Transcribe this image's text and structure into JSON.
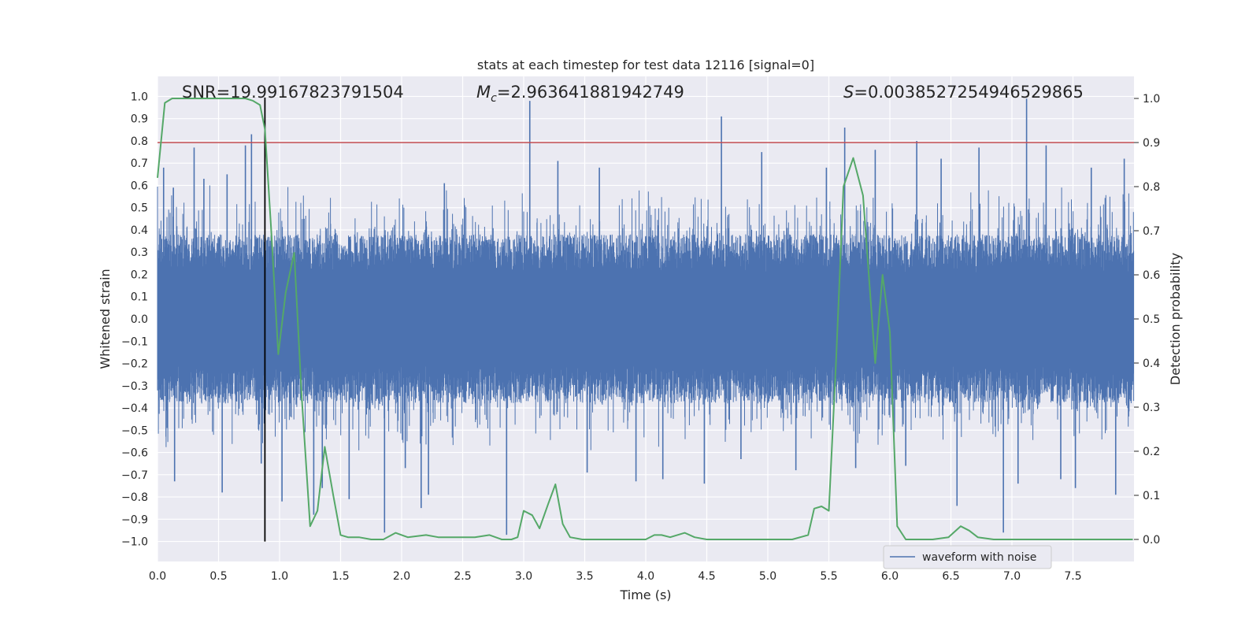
{
  "chart_data": {
    "type": "line",
    "title": "stats at each timestep for test data 12116 [signal=0]",
    "xlabel": "Time (s)",
    "ylabel": "Whitened strain",
    "y2label": "Detection probability",
    "xlim": [
      0.0,
      8.0
    ],
    "ylim": [
      -1.09,
      1.09
    ],
    "y2lim": [
      -0.05,
      1.05
    ],
    "xticks": [
      0.0,
      0.5,
      1.0,
      1.5,
      2.0,
      2.5,
      3.0,
      3.5,
      4.0,
      4.5,
      5.0,
      5.5,
      6.0,
      6.5,
      7.0,
      7.5
    ],
    "xtick_labels": [
      "0.0",
      "0.5",
      "1.0",
      "1.5",
      "2.0",
      "2.5",
      "3.0",
      "3.5",
      "4.0",
      "4.5",
      "5.0",
      "5.5",
      "6.0",
      "6.5",
      "7.0",
      "7.5"
    ],
    "yticks": [
      1.0,
      0.9,
      0.8,
      0.7,
      0.6,
      0.5,
      0.4,
      0.3,
      0.2,
      0.1,
      0.0,
      -0.1,
      -0.2,
      -0.3,
      -0.4,
      -0.5,
      -0.6,
      -0.7,
      -0.8,
      -0.9,
      -1.0
    ],
    "ytick_labels": [
      "1.0",
      "0.9",
      "0.8",
      "0.7",
      "0.6",
      "0.5",
      "0.4",
      "0.3",
      "0.2",
      "0.1",
      "0.0",
      "−0.1",
      "−0.2",
      "−0.3",
      "−0.4",
      "−0.5",
      "−0.6",
      "−0.7",
      "−0.8",
      "−0.9",
      "−1.0"
    ],
    "y2ticks": [
      1.0,
      0.9,
      0.8,
      0.7,
      0.6,
      0.5,
      0.4,
      0.3,
      0.2,
      0.1,
      0.0
    ],
    "y2tick_labels": [
      "1.0",
      "0.9",
      "0.8",
      "0.7",
      "0.6",
      "0.5",
      "0.4",
      "0.3",
      "0.2",
      "0.1",
      "0.0"
    ],
    "grid": true,
    "legend_position": "lower-right",
    "annotations": [
      {
        "prefix": "SNR=",
        "value": "19.99167823791504",
        "x": 0.2,
        "y": 1.0
      },
      {
        "prefix": "M",
        "subscript": "c",
        "suffix": "=",
        "value": "2.963641881942749",
        "x": 2.6,
        "y": 1.0
      },
      {
        "prefix": "S",
        "suffix": "=",
        "value": "0.0038527254946529865",
        "x": 5.6,
        "y": 1.0
      }
    ],
    "threshold": {
      "axis": "y2",
      "value": 0.9,
      "color": "#c44e52"
    },
    "vline": {
      "x": 0.88,
      "ymin": -1.0,
      "ymax": 0.995,
      "color": "#000000"
    },
    "series": [
      {
        "name": "waveform with noise",
        "axis": "y",
        "kind": "noise",
        "color": "#4c72b0",
        "typical_amplitude": 0.38,
        "peaks": [
          {
            "x": 0.05,
            "y": 0.68
          },
          {
            "x": 0.08,
            "y": -0.49
          },
          {
            "x": 0.13,
            "y": 0.59
          },
          {
            "x": 0.14,
            "y": -0.73
          },
          {
            "x": 0.3,
            "y": 0.77
          },
          {
            "x": 0.38,
            "y": 0.63
          },
          {
            "x": 0.53,
            "y": -0.78
          },
          {
            "x": 0.57,
            "y": 0.65
          },
          {
            "x": 0.72,
            "y": 0.78
          },
          {
            "x": 0.77,
            "y": 0.83
          },
          {
            "x": 0.85,
            "y": -0.65
          },
          {
            "x": 1.02,
            "y": -0.82
          },
          {
            "x": 1.2,
            "y": 0.45
          },
          {
            "x": 1.28,
            "y": -0.88
          },
          {
            "x": 1.35,
            "y": -0.76
          },
          {
            "x": 1.57,
            "y": -0.81
          },
          {
            "x": 1.86,
            "y": -0.96
          },
          {
            "x": 2.03,
            "y": -0.67
          },
          {
            "x": 2.16,
            "y": -0.85
          },
          {
            "x": 2.22,
            "y": -0.79
          },
          {
            "x": 2.35,
            "y": 0.61
          },
          {
            "x": 2.86,
            "y": -0.97
          },
          {
            "x": 3.05,
            "y": 0.98
          },
          {
            "x": 3.28,
            "y": 0.71
          },
          {
            "x": 3.52,
            "y": -0.69
          },
          {
            "x": 3.62,
            "y": 0.68
          },
          {
            "x": 3.92,
            "y": -0.73
          },
          {
            "x": 4.14,
            "y": -0.72
          },
          {
            "x": 4.48,
            "y": -0.74
          },
          {
            "x": 4.62,
            "y": 0.91
          },
          {
            "x": 4.78,
            "y": -0.63
          },
          {
            "x": 4.95,
            "y": 0.75
          },
          {
            "x": 5.23,
            "y": -0.68
          },
          {
            "x": 5.48,
            "y": 0.68
          },
          {
            "x": 5.63,
            "y": 0.86
          },
          {
            "x": 5.72,
            "y": -0.67
          },
          {
            "x": 5.88,
            "y": 0.76
          },
          {
            "x": 6.13,
            "y": -0.66
          },
          {
            "x": 6.22,
            "y": 0.8
          },
          {
            "x": 6.42,
            "y": 0.72
          },
          {
            "x": 6.55,
            "y": -0.84
          },
          {
            "x": 6.73,
            "y": 0.77
          },
          {
            "x": 6.93,
            "y": -0.96
          },
          {
            "x": 7.05,
            "y": -0.74
          },
          {
            "x": 7.12,
            "y": 0.99
          },
          {
            "x": 7.28,
            "y": 0.78
          },
          {
            "x": 7.4,
            "y": -0.72
          },
          {
            "x": 7.52,
            "y": -0.76
          },
          {
            "x": 7.65,
            "y": 0.68
          },
          {
            "x": 7.85,
            "y": -0.79
          },
          {
            "x": 7.92,
            "y": 0.72
          }
        ]
      },
      {
        "name": "",
        "axis": "y2",
        "kind": "line",
        "color": "#55a868",
        "x": [
          0.0,
          0.06,
          0.12,
          0.18,
          0.3,
          0.45,
          0.6,
          0.72,
          0.78,
          0.84,
          0.88,
          0.93,
          0.99,
          1.05,
          1.12,
          1.18,
          1.25,
          1.31,
          1.37,
          1.44,
          1.5,
          1.56,
          1.65,
          1.75,
          1.85,
          1.95,
          2.05,
          2.2,
          2.3,
          2.45,
          2.6,
          2.72,
          2.82,
          2.9,
          2.95,
          3.0,
          3.07,
          3.13,
          3.2,
          3.26,
          3.32,
          3.38,
          3.48,
          3.6,
          3.8,
          4.0,
          4.07,
          4.13,
          4.2,
          4.32,
          4.4,
          4.5,
          4.8,
          5.0,
          5.2,
          5.33,
          5.38,
          5.44,
          5.5,
          5.56,
          5.62,
          5.7,
          5.78,
          5.88,
          5.94,
          6.0,
          6.06,
          6.13,
          6.2,
          6.35,
          6.48,
          6.58,
          6.65,
          6.72,
          6.85,
          7.0,
          7.3,
          7.6,
          7.99
        ],
        "y": [
          0.82,
          0.99,
          1.0,
          1.0,
          1.0,
          1.0,
          1.0,
          1.0,
          0.995,
          0.985,
          0.93,
          0.71,
          0.42,
          0.56,
          0.65,
          0.33,
          0.03,
          0.065,
          0.21,
          0.1,
          0.01,
          0.005,
          0.005,
          0.0,
          0.0,
          0.015,
          0.005,
          0.01,
          0.005,
          0.005,
          0.005,
          0.01,
          0.0,
          0.0,
          0.005,
          0.065,
          0.055,
          0.025,
          0.08,
          0.125,
          0.035,
          0.005,
          0.0,
          0.0,
          0.0,
          0.0,
          0.01,
          0.01,
          0.005,
          0.015,
          0.005,
          0.0,
          0.0,
          0.0,
          0.0,
          0.01,
          0.07,
          0.075,
          0.065,
          0.41,
          0.8,
          0.865,
          0.78,
          0.4,
          0.6,
          0.47,
          0.03,
          0.0,
          0.0,
          0.0,
          0.005,
          0.03,
          0.02,
          0.005,
          0.0,
          0.0,
          0.0,
          0.0,
          0.0
        ]
      }
    ]
  }
}
